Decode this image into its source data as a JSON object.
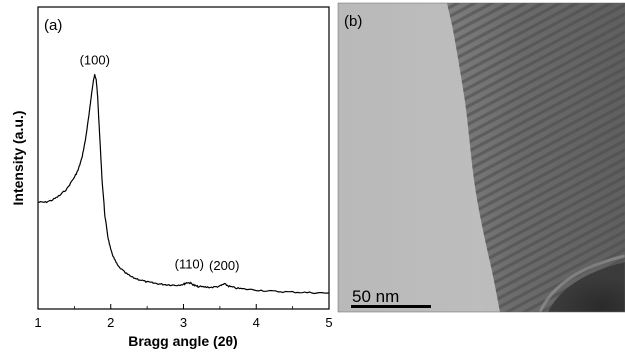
{
  "panel_a_label": "(a)",
  "panel_b_label": "(b)",
  "scale_bar_text": "50 nm",
  "chart_data": {
    "type": "line",
    "title": "",
    "xlabel": "Bragg angle (2θ)",
    "ylabel": "Intensity (a.u.)",
    "xlim": [
      1,
      5
    ],
    "x_ticks": [
      "1",
      "2",
      "3",
      "4",
      "5"
    ],
    "y_ticks_visible": false,
    "grid": false,
    "series": [
      {
        "x": [
          1.0,
          1.1,
          1.2,
          1.3,
          1.4,
          1.5,
          1.55,
          1.6,
          1.65,
          1.7,
          1.73,
          1.76,
          1.78,
          1.8,
          1.82,
          1.85,
          1.88,
          1.92,
          1.96,
          2.0,
          2.05,
          2.1,
          2.2,
          2.3,
          2.4,
          2.5,
          2.6,
          2.7,
          2.8,
          2.9,
          3.0,
          3.05,
          3.1,
          3.15,
          3.2,
          3.3,
          3.4,
          3.5,
          3.56,
          3.62,
          3.7,
          3.8,
          4.0,
          4.2,
          4.4,
          4.6,
          4.8,
          5.0
        ],
        "y": [
          0.42,
          0.42,
          0.43,
          0.45,
          0.48,
          0.53,
          0.56,
          0.61,
          0.69,
          0.8,
          0.88,
          0.95,
          0.98,
          0.96,
          0.88,
          0.7,
          0.52,
          0.36,
          0.27,
          0.21,
          0.17,
          0.14,
          0.11,
          0.09,
          0.08,
          0.07,
          0.065,
          0.06,
          0.058,
          0.056,
          0.06,
          0.068,
          0.065,
          0.055,
          0.05,
          0.048,
          0.047,
          0.052,
          0.062,
          0.052,
          0.045,
          0.04,
          0.035,
          0.03,
          0.027,
          0.025,
          0.023,
          0.022
        ]
      }
    ],
    "annotations": [
      {
        "text": "(100)",
        "x": 1.78,
        "y": 0.98
      },
      {
        "text": "(110)",
        "x": 3.08,
        "y": 0.068
      },
      {
        "text": "(200)",
        "x": 3.56,
        "y": 0.062
      }
    ]
  }
}
